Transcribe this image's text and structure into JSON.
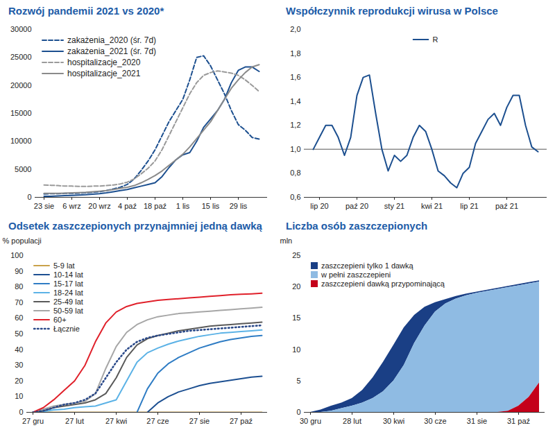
{
  "chart_data": [
    {
      "type": "line",
      "title": "Rozwój pandemii 2021 vs 2020*",
      "categories": [
        "23 sie",
        null,
        null,
        null,
        "6 wrz",
        null,
        null,
        null,
        "20 wrz",
        null,
        null,
        null,
        "4 paź",
        null,
        null,
        null,
        "18 paź",
        null,
        null,
        null,
        "1 lis",
        null,
        null,
        null,
        "15 lis",
        null,
        null,
        null,
        "29 lis",
        null,
        null,
        null
      ],
      "series": [
        {
          "name": "zakażenia_2020 (śr. 7d)",
          "color": "#1c4f8f",
          "line_style": "dashed",
          "values": [
            600,
            650,
            650,
            700,
            700,
            750,
            800,
            900,
            1000,
            1200,
            1500,
            1800,
            2300,
            3300,
            4800,
            6500,
            8500,
            11000,
            13500,
            15500,
            17500,
            21000,
            25000,
            25300,
            23500,
            21000,
            18500,
            15500,
            13000,
            12000,
            10700,
            10400
          ]
        },
        {
          "name": "zakażenia_2021 (śr. 7d)",
          "color": "#1c4f8f",
          "line_style": "solid",
          "values": [
            200,
            200,
            250,
            300,
            350,
            400,
            450,
            550,
            650,
            800,
            1000,
            1200,
            1400,
            1700,
            2000,
            2300,
            2600,
            3700,
            5300,
            6700,
            7600,
            8000,
            10000,
            12500,
            14000,
            15500,
            17500,
            20500,
            22700,
            23300,
            23300,
            22500
          ]
        },
        {
          "name": "hospitalizacje_2020",
          "color": "#9a9a9a",
          "line_style": "dashed",
          "values": [
            2200,
            2150,
            2100,
            2000,
            2000,
            1950,
            1950,
            2000,
            2000,
            2100,
            2200,
            2400,
            2700,
            3300,
            4200,
            5200,
            6500,
            8500,
            11000,
            13500,
            16000,
            18500,
            20500,
            21800,
            22300,
            22600,
            22400,
            22200,
            21800,
            21000,
            20000,
            18900
          ]
        },
        {
          "name": "hospitalizacje_2021",
          "color": "#8a8a8a",
          "line_style": "solid",
          "values": [
            700,
            700,
            720,
            750,
            800,
            850,
            900,
            1000,
            1100,
            1200,
            1400,
            1600,
            1800,
            2100,
            2600,
            3200,
            3900,
            4700,
            5700,
            6700,
            7700,
            9000,
            10500,
            12000,
            13500,
            15500,
            17500,
            19500,
            21000,
            22300,
            23300,
            23700
          ]
        }
      ],
      "ylim": [
        0,
        30000
      ],
      "yticks": [
        0,
        5000,
        10000,
        15000,
        20000,
        25000,
        30000
      ],
      "grid": false,
      "legend": "top-left"
    },
    {
      "type": "line",
      "title": "Współczynnik reprodukcji wirusa w Polsce",
      "categories": [
        null,
        "lip 20",
        null,
        null,
        null,
        null,
        null,
        "paź 20",
        null,
        null,
        null,
        null,
        null,
        "sty 21",
        null,
        null,
        null,
        null,
        null,
        "kwi 21",
        null,
        null,
        null,
        null,
        null,
        "lip 21",
        null,
        null,
        null,
        null,
        null,
        "paź 21",
        null,
        null,
        null,
        null,
        null
      ],
      "series": [
        {
          "name": "R",
          "color": "#1c4f8f",
          "line_style": "solid",
          "values": [
            1.0,
            1.1,
            1.2,
            1.2,
            1.1,
            0.95,
            1.1,
            1.45,
            1.6,
            1.62,
            1.3,
            1.0,
            0.82,
            0.95,
            0.9,
            0.95,
            1.1,
            1.2,
            1.15,
            1.0,
            0.82,
            0.78,
            0.72,
            0.68,
            0.8,
            0.85,
            1.05,
            1.15,
            1.25,
            1.3,
            1.2,
            1.35,
            1.45,
            1.45,
            1.2,
            1.02,
            0.98
          ]
        }
      ],
      "ylim": [
        0.6,
        2.0
      ],
      "yticks": [
        {
          "value": 0.6,
          "label": "0,6"
        },
        {
          "value": 0.8,
          "label": "0,8"
        },
        {
          "value": 1.0,
          "label": "1,0"
        },
        {
          "value": 1.2,
          "label": "1,2"
        },
        {
          "value": 1.4,
          "label": "1,4"
        },
        {
          "value": 1.6,
          "label": "1,6"
        },
        {
          "value": 1.8,
          "label": "1,8"
        },
        {
          "value": 2.0,
          "label": "2,0"
        }
      ],
      "reference_line": 1,
      "grid": false,
      "legend": "top"
    },
    {
      "type": "line",
      "title": "Odsetek zaszczepionych przynajmniej jedną dawką",
      "y_label": "% populacji",
      "categories": [
        "27 gru",
        null,
        null,
        null,
        "27 lut",
        null,
        null,
        null,
        "27 kwi",
        null,
        null,
        null,
        "27 cze",
        null,
        null,
        null,
        "27 sie",
        null,
        null,
        null,
        "27 paź",
        null,
        null
      ],
      "series": [
        {
          "name": "5-9 lat",
          "color": "#c9a24a",
          "line_style": "solid",
          "values": [
            0,
            0,
            0,
            0,
            0,
            0,
            0,
            0,
            0,
            0,
            0,
            0,
            0,
            0,
            0,
            0,
            0,
            0,
            0,
            0,
            0,
            0,
            0
          ]
        },
        {
          "name": "10-14 lat",
          "color": "#1c4f91",
          "line_style": "solid",
          "values": [
            null,
            null,
            null,
            null,
            null,
            null,
            null,
            null,
            null,
            null,
            null,
            0,
            6,
            10,
            13,
            15,
            17,
            18.5,
            19.5,
            20.5,
            21.5,
            22.5,
            23
          ]
        },
        {
          "name": "15-17 lat",
          "color": "#2e7cc4",
          "line_style": "solid",
          "values": [
            null,
            null,
            null,
            null,
            null,
            null,
            null,
            null,
            null,
            null,
            0,
            15,
            25,
            31,
            35,
            38,
            41,
            43,
            45,
            46.5,
            47.5,
            48.5,
            49
          ]
        },
        {
          "name": "18-24 lat",
          "color": "#5bb2e6",
          "line_style": "solid",
          "values": [
            0,
            0.5,
            1.5,
            2,
            3,
            3.5,
            4,
            6,
            8,
            20,
            32,
            38,
            41,
            43.5,
            45.5,
            47,
            48.5,
            49.5,
            50.5,
            51,
            51.5,
            52,
            52.5
          ]
        },
        {
          "name": "25-49 lat",
          "color": "#595959",
          "line_style": "solid",
          "values": [
            0,
            1,
            3,
            4,
            5,
            6,
            8,
            12,
            22,
            35,
            43,
            47,
            49,
            50.5,
            52,
            53,
            54,
            55,
            55.5,
            56,
            56.5,
            57,
            57.5
          ]
        },
        {
          "name": "50-59 lat",
          "color": "#a6a6a6",
          "line_style": "solid",
          "values": [
            0,
            2,
            4,
            5,
            6,
            7,
            12,
            28,
            42,
            51,
            56,
            59,
            61,
            62,
            63,
            63.5,
            64,
            64.5,
            65,
            65.5,
            66,
            66.5,
            67
          ]
        },
        {
          "name": "60+",
          "color": "#e0202a",
          "line_style": "solid",
          "values": [
            0,
            3,
            8,
            14,
            20,
            30,
            45,
            57,
            64,
            67.5,
            69.5,
            70.5,
            71.5,
            72,
            72.5,
            73,
            73.5,
            74,
            74.5,
            75,
            75.3,
            75.6,
            76
          ]
        },
        {
          "name": "Łącznie",
          "color": "#2b4a8a",
          "line_style": "dotted",
          "values": [
            0,
            1,
            3,
            5,
            6,
            8,
            12,
            22,
            32,
            40,
            45,
            47.5,
            49,
            50,
            51,
            52,
            52.5,
            53,
            53.5,
            54,
            54.5,
            55,
            55.5
          ]
        }
      ],
      "ylim": [
        0,
        100
      ],
      "yticks": [
        0,
        10,
        20,
        30,
        40,
        50,
        60,
        70,
        80,
        90,
        100
      ],
      "grid": false,
      "legend": "top-left"
    },
    {
      "type": "area",
      "title": "Liczba osób zaszczepionych",
      "y_label": "mln",
      "stacked": true,
      "categories": [
        "30 gru",
        null,
        null,
        null,
        "28 lut",
        null,
        null,
        null,
        "30 kwi",
        null,
        null,
        null,
        "30 cze",
        null,
        null,
        null,
        "31 sie",
        null,
        null,
        null,
        "31 paź",
        null,
        null
      ],
      "series": [
        {
          "name": "zaszczepieni tylko 1 dawką",
          "color": "#1a3f85",
          "values": [
            0,
            0.4,
            0.8,
            0.9,
            1.2,
            2.0,
            3.3,
            4.7,
            5.7,
            6.0,
            4.5,
            3.0,
            1.5,
            0.7,
            0.4,
            0.3,
            0.2,
            0.2,
            0.2,
            0.2,
            0.2,
            0.2,
            0.2
          ]
        },
        {
          "name": "w pełni zaszczepieni",
          "color": "#8fbbe3",
          "values": [
            0,
            0,
            0.2,
            0.6,
            1.0,
            1.5,
            2.2,
            3.3,
            5,
            7.5,
            11,
            13.8,
            16,
            17.3,
            18.1,
            18.6,
            19,
            19.3,
            19.6,
            19.7,
            19.2,
            18.1,
            16.1
          ]
        },
        {
          "name": "zaszczepieni dawką przypominającą",
          "color": "#c4001a",
          "values": [
            0,
            0,
            0,
            0,
            0,
            0,
            0,
            0,
            0,
            0,
            0,
            0,
            0,
            0,
            0,
            0,
            0,
            0,
            0,
            0.2,
            1.0,
            2.4,
            4.7
          ]
        }
      ],
      "ylim": [
        0,
        25
      ],
      "yticks": [
        0,
        5,
        10,
        15,
        20,
        25
      ],
      "grid": false,
      "legend": "top-left"
    }
  ]
}
